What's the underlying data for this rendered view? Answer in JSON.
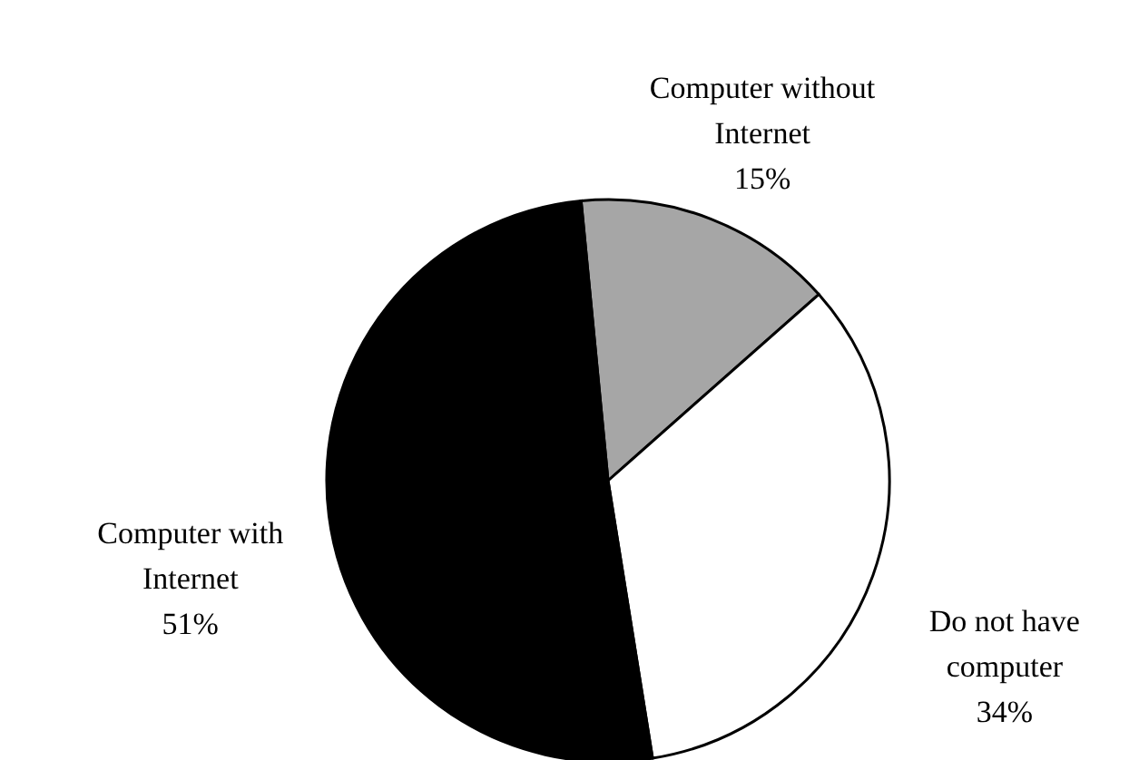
{
  "chart_data": {
    "type": "pie",
    "categories": [
      "Computer without\nInternet",
      "Do not have\ncomputer",
      "Computer with\nInternet"
    ],
    "values": [
      15,
      34,
      51
    ],
    "value_labels": [
      "15%",
      "34%",
      "51%"
    ],
    "colors": [
      "#a6a6a6",
      "#ffffff",
      "#000000"
    ],
    "legend": false
  }
}
